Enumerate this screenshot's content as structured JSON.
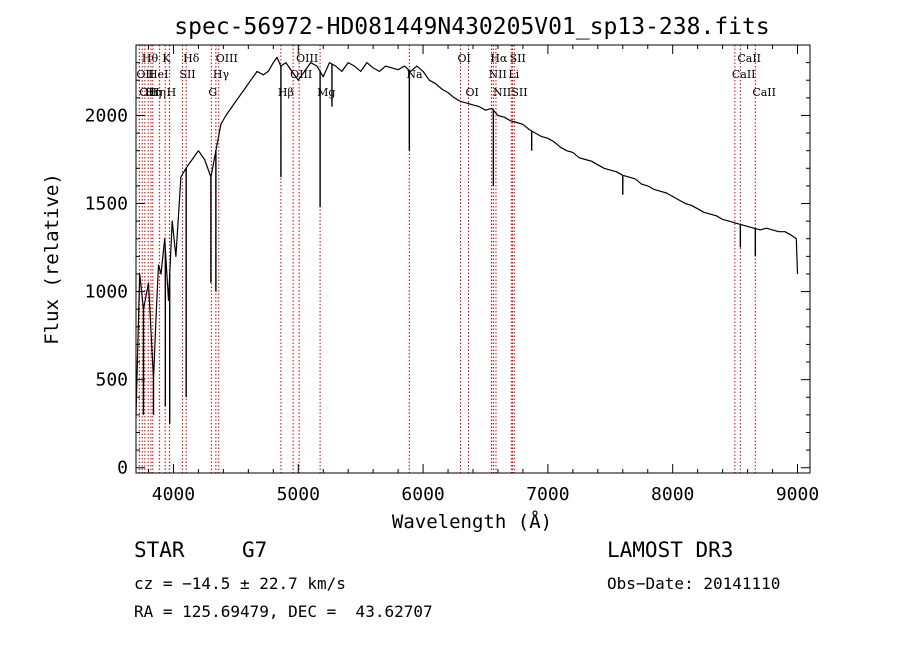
{
  "chart_data": {
    "type": "line",
    "title": "spec-56972-HD081449N430205V01_sp13-238.fits",
    "xlabel": "Wavelength (Å)",
    "ylabel": "Flux (relative)",
    "xlim": [
      3700,
      9100
    ],
    "ylim": [
      -30,
      2400
    ],
    "xticks": [
      4000,
      5000,
      6000,
      7000,
      8000,
      9000
    ],
    "yticks": [
      0,
      500,
      1000,
      1500,
      2000
    ],
    "grid": false,
    "line_color": "#000000",
    "marker_color": "#cc0000",
    "series": [
      {
        "x": [
          3700,
          3730,
          3760,
          3800,
          3840,
          3860,
          3880,
          3900,
          3930,
          3960,
          3990,
          4020,
          4060,
          4100,
          4150,
          4200,
          4250,
          4300,
          4340,
          4380,
          4420,
          4470,
          4520,
          4570,
          4620,
          4670,
          4720,
          4760,
          4800,
          4830,
          4860,
          4900,
          4950,
          5000,
          5050,
          5100,
          5150,
          5200,
          5250,
          5300,
          5350,
          5400,
          5450,
          5500,
          5550,
          5600,
          5650,
          5700,
          5750,
          5800,
          5850,
          5900,
          5950,
          6000,
          6050,
          6100,
          6150,
          6200,
          6250,
          6300,
          6350,
          6400,
          6450,
          6500,
          6550,
          6600,
          6650,
          6700,
          6750,
          6800,
          6850,
          6900,
          6950,
          7000,
          7050,
          7100,
          7150,
          7200,
          7250,
          7300,
          7350,
          7400,
          7450,
          7500,
          7550,
          7600,
          7650,
          7700,
          7750,
          7800,
          7850,
          7900,
          7950,
          8000,
          8050,
          8100,
          8150,
          8200,
          8250,
          8300,
          8350,
          8400,
          8450,
          8500,
          8550,
          8600,
          8650,
          8700,
          8750,
          8800,
          8850,
          8900,
          8950,
          8990,
          9000
        ],
        "y": [
          300,
          1100,
          900,
          1050,
          500,
          850,
          1150,
          1100,
          1300,
          950,
          1400,
          1200,
          1650,
          1700,
          1750,
          1800,
          1750,
          1650,
          1800,
          1950,
          2000,
          2050,
          2100,
          2150,
          2200,
          2250,
          2230,
          2250,
          2300,
          2330,
          2280,
          2300,
          2250,
          2200,
          2250,
          2300,
          2280,
          2220,
          2300,
          2280,
          2250,
          2300,
          2280,
          2250,
          2300,
          2270,
          2250,
          2280,
          2270,
          2260,
          2280,
          2250,
          2280,
          2250,
          2200,
          2180,
          2150,
          2130,
          2100,
          2080,
          2070,
          2060,
          2050,
          2030,
          2040,
          2000,
          1990,
          1970,
          1960,
          1950,
          1920,
          1900,
          1880,
          1870,
          1850,
          1820,
          1800,
          1790,
          1760,
          1750,
          1740,
          1720,
          1700,
          1690,
          1680,
          1660,
          1650,
          1640,
          1610,
          1600,
          1580,
          1570,
          1560,
          1540,
          1520,
          1500,
          1490,
          1470,
          1450,
          1440,
          1430,
          1410,
          1400,
          1390,
          1380,
          1370,
          1360,
          1350,
          1360,
          1350,
          1340,
          1340,
          1320,
          1300,
          1100
        ]
      }
    ],
    "absorption_dips": [
      {
        "x": 3760,
        "y": 300
      },
      {
        "x": 3840,
        "y": 300
      },
      {
        "x": 3935,
        "y": 350
      },
      {
        "x": 3970,
        "y": 250
      },
      {
        "x": 4102,
        "y": 400
      },
      {
        "x": 4300,
        "y": 1050
      },
      {
        "x": 4340,
        "y": 1000
      },
      {
        "x": 4861,
        "y": 1650
      },
      {
        "x": 5175,
        "y": 1480
      },
      {
        "x": 5270,
        "y": 2050
      },
      {
        "x": 5890,
        "y": 1800
      },
      {
        "x": 6563,
        "y": 1600
      },
      {
        "x": 6870,
        "y": 1800
      },
      {
        "x": 7600,
        "y": 1550
      },
      {
        "x": 8542,
        "y": 1250
      },
      {
        "x": 8662,
        "y": 1200
      }
    ],
    "line_markers": [
      {
        "x": 3727,
        "label": "OII",
        "row": 2
      },
      {
        "x": 3750,
        "label": "OII",
        "row": 3
      },
      {
        "x": 3771,
        "label": "Hθ",
        "row": 1
      },
      {
        "x": 3798,
        "label": "Hη",
        "row": 3
      },
      {
        "x": 3820,
        "label": "HeI",
        "row": 2
      },
      {
        "x": 3835,
        "label": "Hη",
        "row": 3
      },
      {
        "x": 3889,
        "label": "",
        "row": 0
      },
      {
        "x": 3934,
        "label": "K",
        "row": 1
      },
      {
        "x": 3969,
        "label": "H",
        "row": 3
      },
      {
        "x": 4072,
        "label": "SII",
        "row": 2
      },
      {
        "x": 4102,
        "label": "Hδ",
        "row": 1
      },
      {
        "x": 4304,
        "label": "G",
        "row": 3
      },
      {
        "x": 4340,
        "label": "Hγ",
        "row": 2
      },
      {
        "x": 4363,
        "label": "OIII",
        "row": 1
      },
      {
        "x": 4861,
        "label": "Hβ",
        "row": 3
      },
      {
        "x": 4959,
        "label": "OIII",
        "row": 2
      },
      {
        "x": 5007,
        "label": "OIII",
        "row": 1
      },
      {
        "x": 5175,
        "label": "Mg",
        "row": 3
      },
      {
        "x": 5890,
        "label": "Na",
        "row": 2
      },
      {
        "x": 6300,
        "label": "OI",
        "row": 1
      },
      {
        "x": 6364,
        "label": "OI",
        "row": 3
      },
      {
        "x": 6548,
        "label": "NII",
        "row": 2
      },
      {
        "x": 6563,
        "label": "Hα",
        "row": 1
      },
      {
        "x": 6584,
        "label": "NII",
        "row": 3
      },
      {
        "x": 6707,
        "label": "Li",
        "row": 2
      },
      {
        "x": 6717,
        "label": "SII",
        "row": 1
      },
      {
        "x": 6731,
        "label": "SII",
        "row": 3
      },
      {
        "x": 8498,
        "label": "CaII",
        "row": 2
      },
      {
        "x": 8542,
        "label": "CaII",
        "row": 1
      },
      {
        "x": 8662,
        "label": "CaII",
        "row": 3
      }
    ]
  },
  "info": {
    "object_type": "STAR",
    "subclass": "G7",
    "redshift": "cz = −14.5 ± 22.7 km/s",
    "coordinates": "RA = 125.69479, DEC =  43.62707",
    "survey": "LAMOST DR3",
    "obs_date": "Obs−Date: 20141110"
  }
}
